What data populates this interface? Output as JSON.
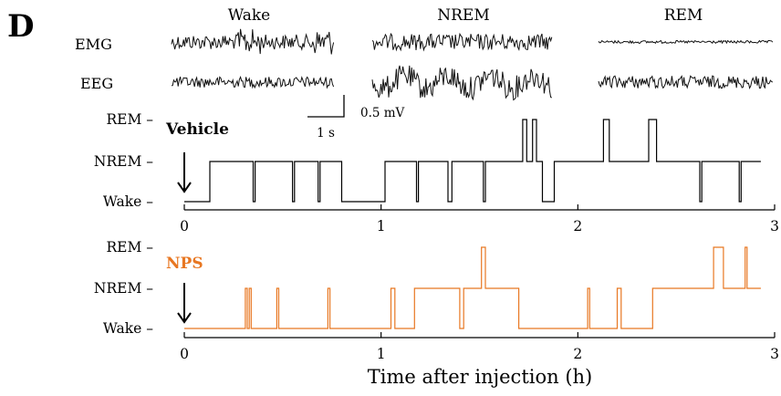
{
  "panel_letter": "D",
  "example_traces": {
    "columns": [
      "Wake",
      "NREM",
      "REM"
    ],
    "rows": [
      "EMG",
      "EEG"
    ],
    "scale_time": "1 s",
    "scale_voltage": "0.5 mV"
  },
  "chart_data": {
    "type": "line",
    "xlabel": "Time after injection (h)",
    "xlim": [
      0,
      3
    ],
    "xticks": [
      0,
      1,
      2,
      3
    ],
    "state_levels": [
      "Wake",
      "NREM",
      "REM"
    ],
    "state_tick_labels": [
      "REM –",
      "NREM –",
      "Wake –"
    ],
    "series": [
      {
        "name": "Vehicle",
        "color": "#000000",
        "segments": [
          {
            "state": "Wake",
            "start": 0.0,
            "end": 0.13
          },
          {
            "state": "NREM",
            "start": 0.13,
            "end": 0.35
          },
          {
            "state": "Wake",
            "start": 0.35,
            "end": 0.36
          },
          {
            "state": "NREM",
            "start": 0.36,
            "end": 0.55
          },
          {
            "state": "Wake",
            "start": 0.55,
            "end": 0.56
          },
          {
            "state": "NREM",
            "start": 0.56,
            "end": 0.68
          },
          {
            "state": "Wake",
            "start": 0.68,
            "end": 0.69
          },
          {
            "state": "NREM",
            "start": 0.69,
            "end": 0.8
          },
          {
            "state": "Wake",
            "start": 0.8,
            "end": 1.02
          },
          {
            "state": "NREM",
            "start": 1.02,
            "end": 1.18
          },
          {
            "state": "Wake",
            "start": 1.18,
            "end": 1.19
          },
          {
            "state": "NREM",
            "start": 1.19,
            "end": 1.34
          },
          {
            "state": "Wake",
            "start": 1.34,
            "end": 1.36
          },
          {
            "state": "NREM",
            "start": 1.36,
            "end": 1.52
          },
          {
            "state": "Wake",
            "start": 1.52,
            "end": 1.53
          },
          {
            "state": "NREM",
            "start": 1.53,
            "end": 1.72
          },
          {
            "state": "REM",
            "start": 1.72,
            "end": 1.74
          },
          {
            "state": "NREM",
            "start": 1.74,
            "end": 1.77
          },
          {
            "state": "REM",
            "start": 1.77,
            "end": 1.79
          },
          {
            "state": "NREM",
            "start": 1.79,
            "end": 1.82
          },
          {
            "state": "Wake",
            "start": 1.82,
            "end": 1.88
          },
          {
            "state": "NREM",
            "start": 1.88,
            "end": 2.13
          },
          {
            "state": "REM",
            "start": 2.13,
            "end": 2.16
          },
          {
            "state": "NREM",
            "start": 2.16,
            "end": 2.36
          },
          {
            "state": "REM",
            "start": 2.36,
            "end": 2.4
          },
          {
            "state": "NREM",
            "start": 2.4,
            "end": 2.62
          },
          {
            "state": "Wake",
            "start": 2.62,
            "end": 2.63
          },
          {
            "state": "NREM",
            "start": 2.63,
            "end": 2.82
          },
          {
            "state": "Wake",
            "start": 2.82,
            "end": 2.83
          },
          {
            "state": "NREM",
            "start": 2.83,
            "end": 2.93
          }
        ]
      },
      {
        "name": "NPS",
        "color": "#e87722",
        "segments": [
          {
            "state": "Wake",
            "start": 0.0,
            "end": 0.31
          },
          {
            "state": "NREM",
            "start": 0.31,
            "end": 0.32
          },
          {
            "state": "Wake",
            "start": 0.32,
            "end": 0.33
          },
          {
            "state": "NREM",
            "start": 0.33,
            "end": 0.34
          },
          {
            "state": "Wake",
            "start": 0.34,
            "end": 0.47
          },
          {
            "state": "NREM",
            "start": 0.47,
            "end": 0.48
          },
          {
            "state": "Wake",
            "start": 0.48,
            "end": 0.73
          },
          {
            "state": "NREM",
            "start": 0.73,
            "end": 0.74
          },
          {
            "state": "Wake",
            "start": 0.74,
            "end": 1.05
          },
          {
            "state": "NREM",
            "start": 1.05,
            "end": 1.07
          },
          {
            "state": "Wake",
            "start": 1.07,
            "end": 1.17
          },
          {
            "state": "NREM",
            "start": 1.17,
            "end": 1.4
          },
          {
            "state": "Wake",
            "start": 1.4,
            "end": 1.42
          },
          {
            "state": "NREM",
            "start": 1.42,
            "end": 1.51
          },
          {
            "state": "REM",
            "start": 1.51,
            "end": 1.53
          },
          {
            "state": "NREM",
            "start": 1.53,
            "end": 1.7
          },
          {
            "state": "Wake",
            "start": 1.7,
            "end": 2.05
          },
          {
            "state": "NREM",
            "start": 2.05,
            "end": 2.06
          },
          {
            "state": "Wake",
            "start": 2.06,
            "end": 2.2
          },
          {
            "state": "NREM",
            "start": 2.2,
            "end": 2.22
          },
          {
            "state": "Wake",
            "start": 2.22,
            "end": 2.38
          },
          {
            "state": "NREM",
            "start": 2.38,
            "end": 2.69
          },
          {
            "state": "REM",
            "start": 2.69,
            "end": 2.74
          },
          {
            "state": "NREM",
            "start": 2.74,
            "end": 2.85
          },
          {
            "state": "REM",
            "start": 2.85,
            "end": 2.86
          },
          {
            "state": "NREM",
            "start": 2.86,
            "end": 2.93
          }
        ]
      }
    ]
  }
}
